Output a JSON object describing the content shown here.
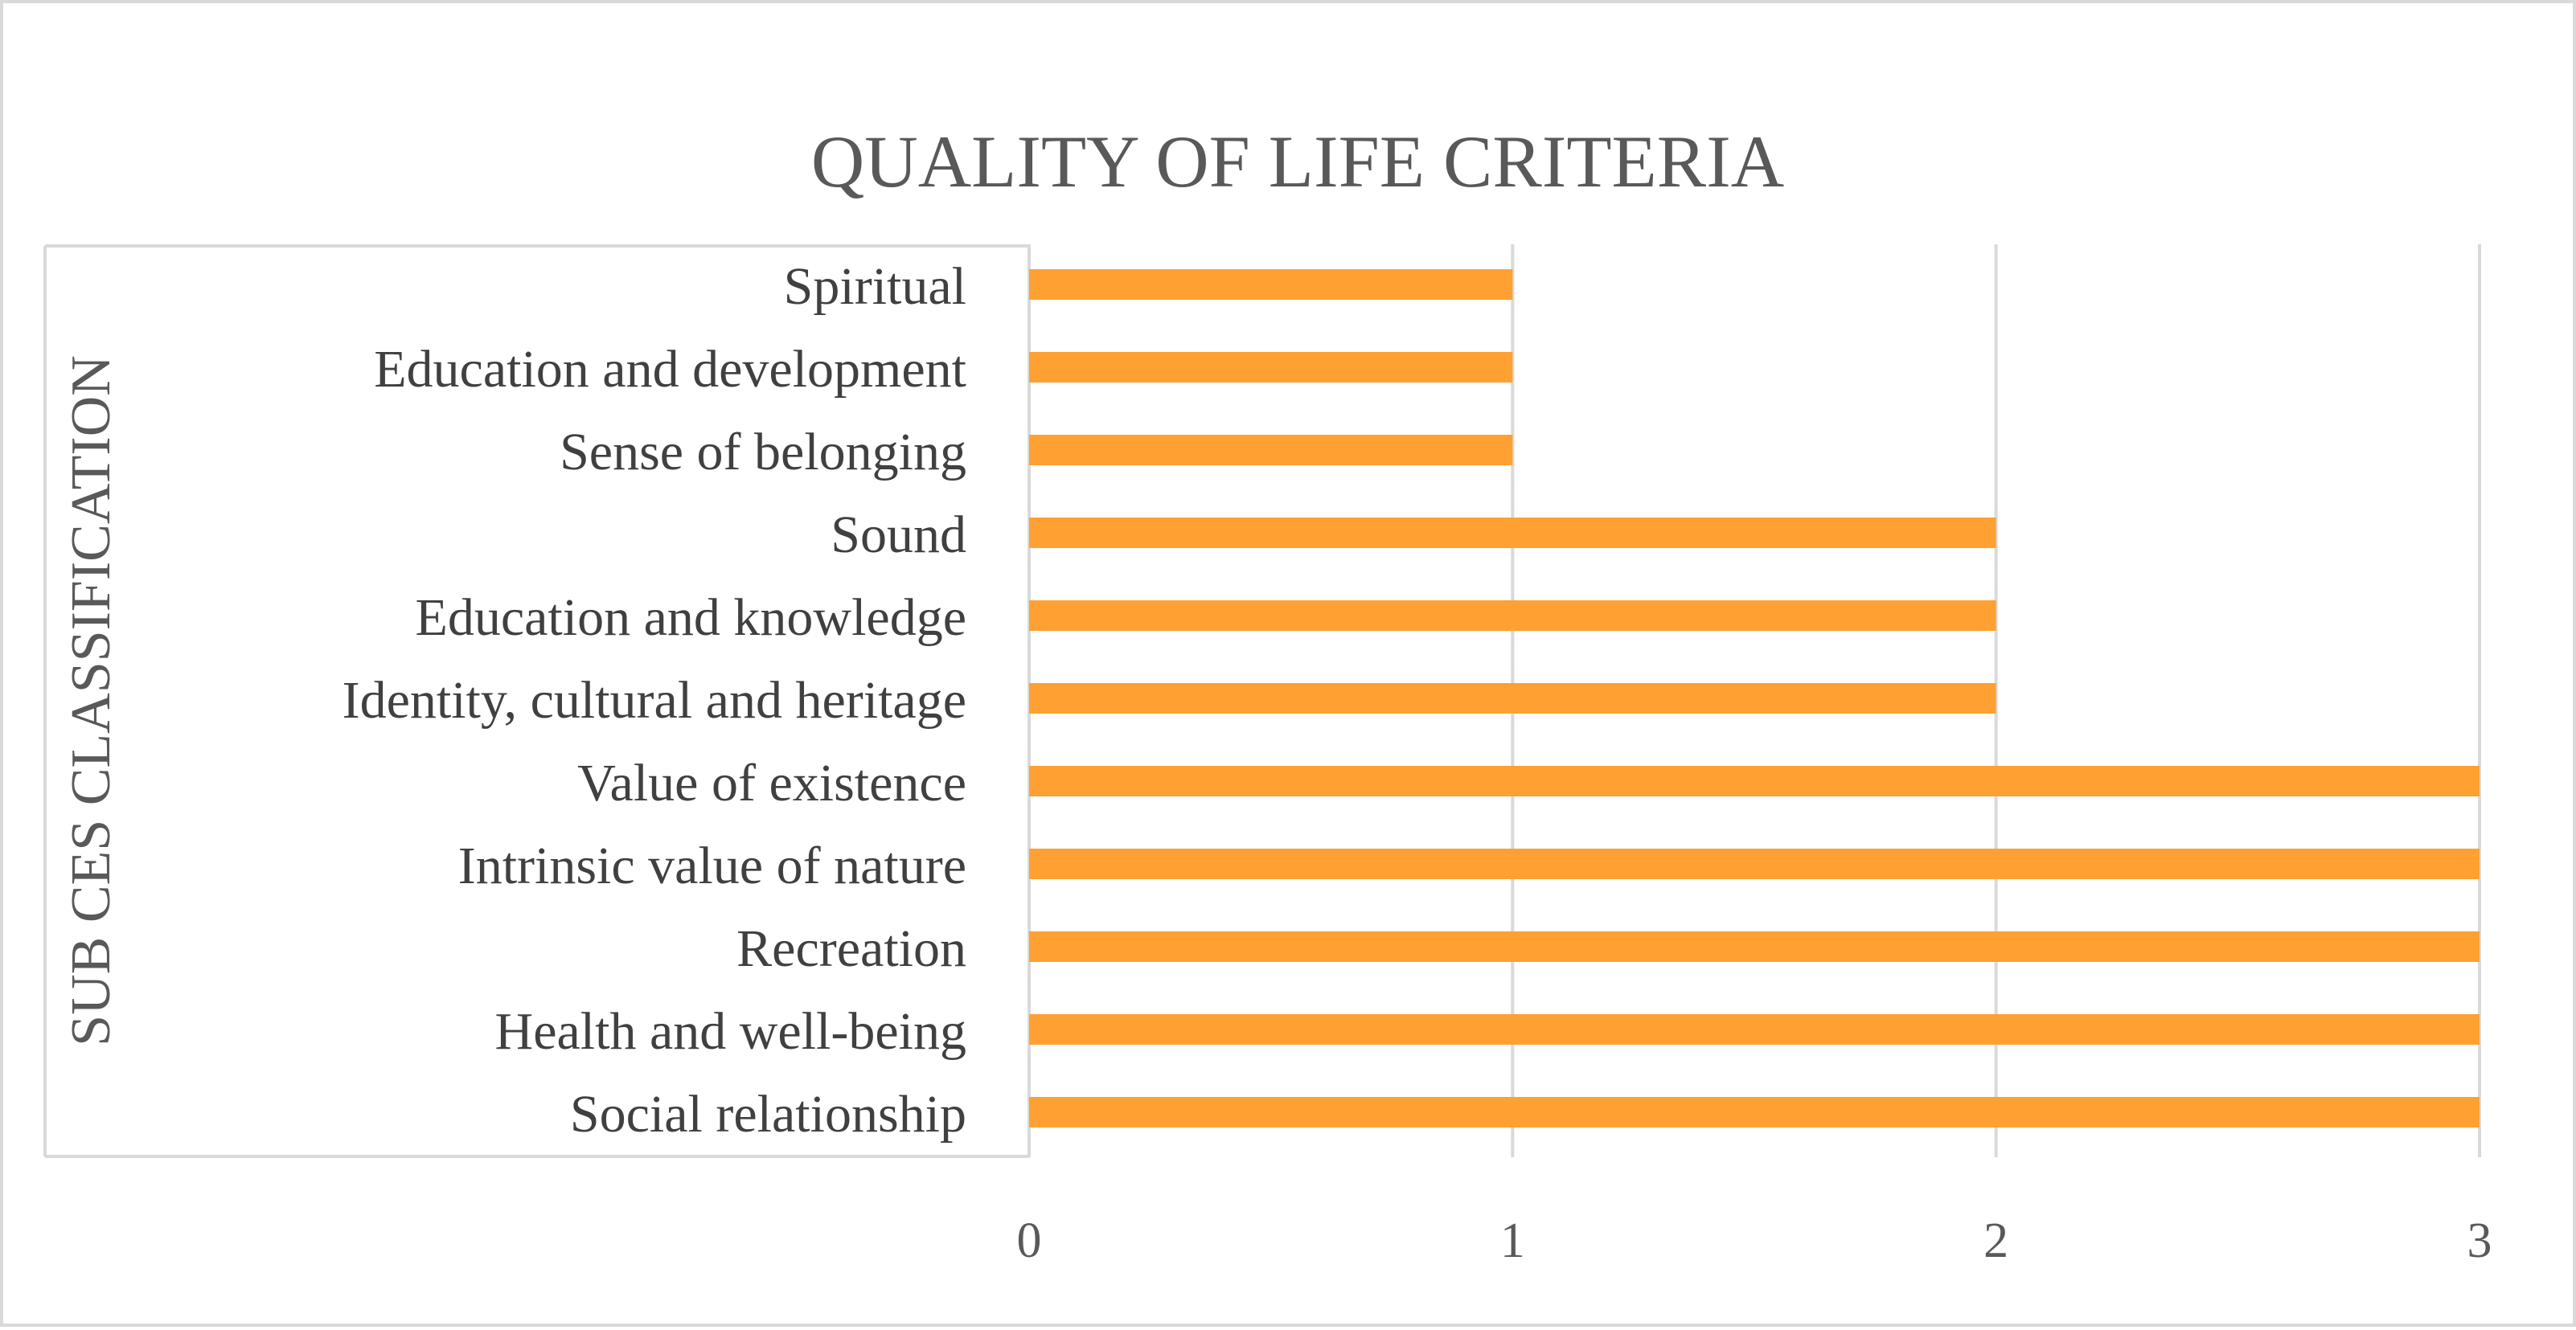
{
  "chart_data": {
    "type": "bar",
    "orientation": "horizontal",
    "title": "QUALITY OF LIFE CRITERIA",
    "xlabel": "",
    "ylabel": "SUB CES CLASSIFICATION",
    "categories": [
      "Spiritual",
      "Education and development",
      "Sense of belonging",
      "Sound",
      "Education and knowledge",
      "Identity, cultural and heritage",
      "Value of existence",
      "Intrinsic value of nature",
      "Recreation",
      "Health and well-being",
      "Social relationship"
    ],
    "values": [
      1,
      1,
      1,
      2,
      2,
      2,
      3,
      3,
      3,
      3,
      3
    ],
    "xlim": [
      0,
      3
    ],
    "xticks": [
      0,
      1,
      2,
      3
    ],
    "grid": true,
    "legend": "none",
    "bar_color": "#FFA032",
    "grid_color": "#d9d9d9"
  }
}
